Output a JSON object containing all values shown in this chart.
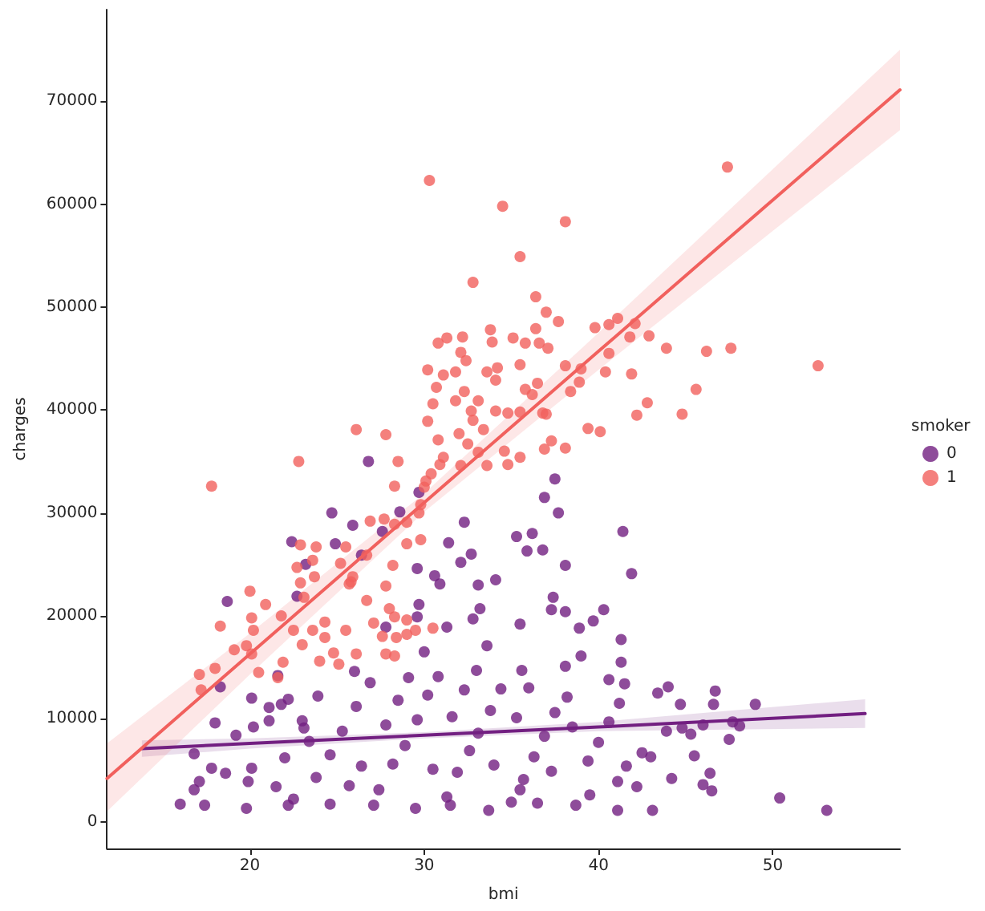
{
  "chart_data": {
    "type": "scatter",
    "xlabel": "bmi",
    "ylabel": "charges",
    "legend_title": "smoker",
    "legend": "right",
    "marker": "circle",
    "xlim": [
      11.8,
      57.3
    ],
    "ylim": [
      -2600,
      78900
    ],
    "xticks": [
      20,
      30,
      40,
      50
    ],
    "yticks": [
      0,
      10000,
      20000,
      30000,
      40000,
      50000,
      60000,
      70000
    ],
    "series": [
      {
        "type": "scatter",
        "name": "0",
        "color": "#721f81",
        "x": [
          26.8,
          37.5,
          36.9,
          37.7,
          29.7,
          28.6,
          24.7,
          25.9,
          27.6,
          22.4,
          24.9,
          23.2,
          26.4,
          32.3,
          31.4,
          35.3,
          36.2,
          36.8,
          35.9,
          38.1,
          41.4,
          41.9,
          32.1,
          32.7,
          33.1,
          34.1,
          29.6,
          30.6,
          30.9,
          18.7,
          22.7,
          37.4,
          37.3,
          38.1,
          40.3,
          33.2,
          32.8,
          31.3,
          35.5,
          38.9,
          39.7,
          41.3,
          29.7,
          29.6,
          27.8,
          33.6,
          39.0,
          38.1,
          41.3,
          41.5,
          40.6,
          43.4,
          44.0,
          44.7,
          46.7,
          46.6,
          49.0,
          47.7,
          48.1,
          47.5,
          46.0,
          44.8,
          43.9,
          45.3,
          45.5,
          46.4,
          46.0,
          46.5,
          44.2,
          43.1,
          50.4,
          53.1,
          43.0,
          42.5,
          41.6,
          42.2,
          41.1,
          41.1,
          39.5,
          38.7,
          36.5,
          35.5,
          33.7,
          31.5,
          29.5,
          27.1,
          24.6,
          22.2,
          19.8,
          17.4,
          16.0,
          16.8,
          17.1,
          16.8,
          17.8,
          18.6,
          19.9,
          20.1,
          19.2,
          20.2,
          21.1,
          21.1,
          21.8,
          20.1,
          18.3,
          18.0,
          21.6,
          22.2,
          23.0,
          23.4,
          22.5,
          23.8,
          24.6,
          25.3,
          26.1,
          26.9,
          27.4,
          28.2,
          28.9,
          29.6,
          30.2,
          30.8,
          31.3,
          31.9,
          32.6,
          33.1,
          33.8,
          34.4,
          35.0,
          35.7,
          36.3,
          36.9,
          37.5,
          38.2,
          39.4,
          40.0,
          40.6,
          41.2,
          23.1,
          23.9,
          25.7,
          26.4,
          27.8,
          28.5,
          29.1,
          30.5,
          31.6,
          32.3,
          34.0,
          35.3,
          36.0,
          37.3,
          38.5,
          21.5,
          22.0,
          30.0,
          33.0,
          35.6,
          26.0
        ],
        "values": [
          35000,
          33300,
          31500,
          30000,
          32000,
          30100,
          30000,
          28800,
          28200,
          27200,
          27000,
          25000,
          25900,
          29100,
          27100,
          27700,
          28000,
          26400,
          26300,
          24900,
          28200,
          24100,
          25200,
          26000,
          23000,
          23500,
          24600,
          23900,
          23100,
          21400,
          21900,
          21800,
          20600,
          20400,
          20600,
          20700,
          19700,
          18900,
          19200,
          18800,
          19500,
          17700,
          21100,
          19900,
          18900,
          17100,
          16100,
          15100,
          15500,
          13400,
          13800,
          12500,
          13100,
          11400,
          12700,
          11400,
          11400,
          9700,
          9300,
          8000,
          9400,
          9100,
          8800,
          8500,
          6400,
          4700,
          3600,
          3000,
          4200,
          1100,
          2300,
          1100,
          6300,
          6700,
          5400,
          3400,
          3900,
          1100,
          2600,
          1600,
          1800,
          3100,
          1100,
          1600,
          1300,
          1600,
          1700,
          1600,
          1300,
          1600,
          1700,
          3100,
          3900,
          6600,
          5200,
          4700,
          3900,
          5200,
          8400,
          9200,
          9800,
          11100,
          11400,
          12000,
          13100,
          9600,
          14200,
          11900,
          9800,
          7800,
          2200,
          4300,
          6500,
          8800,
          11200,
          13500,
          3100,
          5600,
          7400,
          9900,
          12300,
          14100,
          2400,
          4800,
          6900,
          8600,
          10800,
          12900,
          1900,
          4100,
          6300,
          8300,
          10600,
          12100,
          5900,
          7700,
          9700,
          11500,
          9100,
          12200,
          3500,
          5400,
          9400,
          11800,
          14000,
          5100,
          10200,
          12800,
          5500,
          10100,
          13000,
          4900,
          9200,
          3400,
          6200,
          16500,
          14700,
          14700,
          14600
        ]
      },
      {
        "type": "line",
        "color": "#721f81",
        "marker": "none",
        "line_style": "solid",
        "x": [
          13.8,
          20,
          30,
          40,
          55.3
        ],
        "values": [
          7100,
          7600,
          8400,
          9200,
          10500
        ],
        "lower": [
          6300,
          7100,
          8100,
          8800,
          9100
        ],
        "upper": [
          7900,
          8100,
          8700,
          9700,
          11900
        ]
      },
      {
        "type": "scatter",
        "name": "1",
        "color": "#f1605d",
        "x": [
          30.3,
          34.5,
          38.1,
          35.5,
          32.8,
          36.4,
          37.0,
          41.1,
          47.4,
          37.7,
          39.8,
          40.6,
          42.1,
          41.8,
          42.9,
          43.9,
          46.2,
          47.6,
          52.6,
          45.6,
          44.8,
          42.8,
          42.2,
          40.1,
          39.4,
          41.9,
          40.4,
          40.6,
          39.0,
          38.1,
          38.9,
          38.4,
          38.1,
          37.3,
          36.9,
          37.0,
          36.5,
          36.2,
          35.8,
          36.6,
          37.1,
          36.4,
          35.8,
          35.1,
          33.9,
          33.8,
          32.2,
          31.3,
          30.8,
          32.1,
          32.4,
          30.2,
          31.1,
          31.8,
          30.7,
          32.3,
          33.6,
          34.2,
          35.5,
          34.1,
          31.8,
          33.1,
          32.7,
          30.5,
          30.2,
          32.8,
          34.1,
          34.8,
          35.5,
          36.8,
          33.4,
          32.0,
          32.5,
          30.8,
          31.1,
          33.1,
          34.6,
          35.5,
          34.8,
          33.6,
          32.1,
          30.9,
          30.4,
          30.1,
          30.0,
          29.7,
          29.8,
          29.0,
          28.3,
          27.7,
          26.9,
          28.5,
          27.8,
          26.1,
          28.3,
          22.8,
          17.8,
          29.0,
          29.8,
          25.5,
          23.8,
          22.9,
          23.6,
          22.7,
          25.2,
          25.9,
          26.7,
          28.2,
          25.7,
          22.9,
          20.0,
          20.9,
          23.7,
          18.3,
          17.1,
          17.2,
          18.0,
          19.1,
          19.8,
          20.1,
          20.1,
          20.2,
          20.5,
          21.8,
          22.5,
          21.9,
          21.6,
          23.0,
          23.6,
          24.0,
          24.3,
          24.8,
          25.1,
          26.1,
          25.5,
          24.3,
          23.1,
          27.1,
          27.6,
          27.8,
          28.4,
          29.0,
          29.5,
          28.3,
          28.0,
          27.8,
          26.7,
          25.8,
          28.3,
          29.0,
          30.5
        ],
        "values": [
          62300,
          59800,
          58300,
          54900,
          52400,
          51000,
          49500,
          48900,
          63600,
          48600,
          48000,
          48300,
          48400,
          47100,
          47200,
          46000,
          45700,
          46000,
          44300,
          42000,
          39600,
          40700,
          39500,
          37900,
          38200,
          43500,
          43700,
          45500,
          44000,
          44300,
          42700,
          41800,
          36300,
          37000,
          36200,
          39600,
          42600,
          41500,
          42000,
          46500,
          46000,
          47900,
          46500,
          47000,
          46600,
          47800,
          47100,
          47000,
          46500,
          45600,
          44800,
          43900,
          43400,
          43700,
          42200,
          41800,
          43700,
          44100,
          44400,
          42900,
          40900,
          40900,
          39900,
          40600,
          38900,
          39000,
          39900,
          39700,
          39800,
          39700,
          38100,
          37700,
          36700,
          37100,
          35400,
          35900,
          36000,
          35400,
          34700,
          34600,
          34600,
          34700,
          33800,
          33100,
          32500,
          30000,
          30800,
          29100,
          28900,
          29400,
          29200,
          35000,
          37600,
          38100,
          32600,
          35000,
          32600,
          27000,
          27400,
          26700,
          26700,
          26900,
          25400,
          24700,
          25100,
          23800,
          25900,
          24900,
          23100,
          23200,
          22400,
          21100,
          23800,
          19000,
          14300,
          12800,
          14900,
          16700,
          17100,
          16300,
          19800,
          18600,
          14500,
          20000,
          18600,
          15500,
          14000,
          17200,
          18600,
          15600,
          17900,
          16400,
          15300,
          16300,
          18600,
          19400,
          21800,
          19300,
          18000,
          16300,
          17900,
          18200,
          18600,
          19900,
          20700,
          22900,
          21500,
          23300,
          16100,
          19600,
          18800
        ]
      },
      {
        "type": "line",
        "color": "#f1605d",
        "marker": "none",
        "line_style": "solid",
        "x": [
          11.8,
          20,
          30,
          40,
          50,
          57.3
        ],
        "values": [
          4200,
          16300,
          31000,
          45700,
          60400,
          71100
        ],
        "lower": [
          1000,
          14300,
          30100,
          43900,
          57400,
          67200
        ],
        "upper": [
          7600,
          18300,
          31900,
          47500,
          63400,
          75000
        ]
      }
    ]
  }
}
